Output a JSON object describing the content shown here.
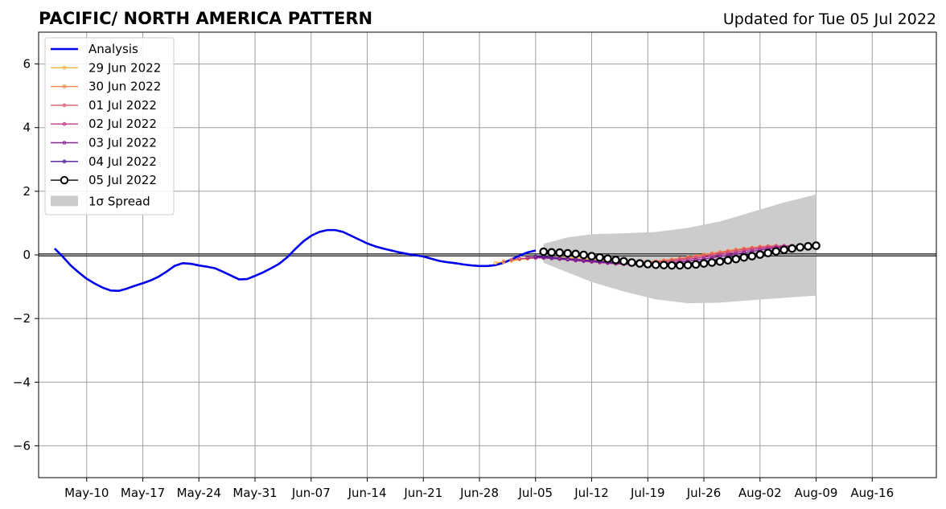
{
  "chart_data": {
    "type": "line",
    "title": "PACIFIC/ NORTH AMERICA PATTERN",
    "subtitle": "Updated for Tue 05 Jul 2022",
    "ylim": [
      -7,
      7
    ],
    "y_ticks": [
      -6,
      -4,
      -2,
      0,
      2,
      4,
      6
    ],
    "y_tick_labels": [
      "−6",
      "−4",
      "−2",
      "0",
      "2",
      "4",
      "6"
    ],
    "xlim": [
      "2022-05-04",
      "2022-08-24"
    ],
    "x_ticks": [
      "2022-05-10",
      "2022-05-17",
      "2022-05-24",
      "2022-05-31",
      "2022-06-07",
      "2022-06-14",
      "2022-06-21",
      "2022-06-28",
      "2022-07-05",
      "2022-07-12",
      "2022-07-19",
      "2022-07-26",
      "2022-08-02",
      "2022-08-09",
      "2022-08-16"
    ],
    "x_tick_labels": [
      "May-10",
      "May-17",
      "May-24",
      "May-31",
      "Jun-07",
      "Jun-14",
      "Jun-21",
      "Jun-28",
      "Jul-05",
      "Jul-12",
      "Jul-19",
      "Jul-26",
      "Aug-02",
      "Aug-09",
      "Aug-16"
    ],
    "grid": true,
    "legend_position": "top-left",
    "analysis": {
      "name": "Analysis",
      "color": "#0000ee",
      "x": [
        "2022-05-06",
        "2022-05-07",
        "2022-05-08",
        "2022-05-09",
        "2022-05-10",
        "2022-05-11",
        "2022-05-12",
        "2022-05-13",
        "2022-05-14",
        "2022-05-15",
        "2022-05-16",
        "2022-05-17",
        "2022-05-18",
        "2022-05-19",
        "2022-05-20",
        "2022-05-21",
        "2022-05-22",
        "2022-05-23",
        "2022-05-24",
        "2022-05-25",
        "2022-05-26",
        "2022-05-27",
        "2022-05-28",
        "2022-05-29",
        "2022-05-30",
        "2022-05-31",
        "2022-06-01",
        "2022-06-02",
        "2022-06-03",
        "2022-06-04",
        "2022-06-05",
        "2022-06-06",
        "2022-06-07",
        "2022-06-08",
        "2022-06-09",
        "2022-06-10",
        "2022-06-11",
        "2022-06-12",
        "2022-06-13",
        "2022-06-14",
        "2022-06-15",
        "2022-06-16",
        "2022-06-17",
        "2022-06-18",
        "2022-06-19",
        "2022-06-20",
        "2022-06-21",
        "2022-06-22",
        "2022-06-23",
        "2022-06-24",
        "2022-06-25",
        "2022-06-26",
        "2022-06-27",
        "2022-06-28",
        "2022-06-29",
        "2022-06-30",
        "2022-07-01",
        "2022-07-02",
        "2022-07-03",
        "2022-07-04",
        "2022-07-05"
      ],
      "y": [
        0.2,
        -0.05,
        -0.33,
        -0.55,
        -0.75,
        -0.9,
        -1.03,
        -1.12,
        -1.13,
        -1.06,
        -0.97,
        -0.89,
        -0.8,
        -0.68,
        -0.52,
        -0.34,
        -0.26,
        -0.28,
        -0.33,
        -0.37,
        -0.42,
        -0.53,
        -0.65,
        -0.77,
        -0.76,
        -0.66,
        -0.55,
        -0.42,
        -0.28,
        -0.08,
        0.18,
        0.42,
        0.6,
        0.72,
        0.78,
        0.78,
        0.72,
        0.6,
        0.48,
        0.36,
        0.27,
        0.2,
        0.14,
        0.08,
        0.03,
        -0.01,
        -0.05,
        -0.12,
        -0.19,
        -0.23,
        -0.26,
        -0.3,
        -0.33,
        -0.35,
        -0.35,
        -0.32,
        -0.25,
        -0.14,
        -0.02,
        0.08,
        0.14
      ]
    },
    "forecasts": [
      {
        "name": "29 Jun 2022",
        "color": "#fbb040",
        "start": "2022-06-30",
        "days": 35,
        "y": [
          -0.25,
          -0.22,
          -0.19,
          -0.15,
          -0.12,
          -0.1,
          -0.08,
          -0.08,
          -0.08,
          -0.09,
          -0.1,
          -0.12,
          -0.14,
          -0.16,
          -0.18,
          -0.2,
          -0.21,
          -0.22,
          -0.22,
          -0.21,
          -0.2,
          -0.18,
          -0.15,
          -0.12,
          -0.08,
          -0.04,
          0.01,
          0.05,
          0.09,
          0.13,
          0.17,
          0.2,
          0.23,
          0.25,
          0.26
        ]
      },
      {
        "name": "30 Jun 2022",
        "color": "#f4874a",
        "start": "2022-07-01",
        "days": 35,
        "y": [
          -0.2,
          -0.16,
          -0.12,
          -0.1,
          -0.08,
          -0.08,
          -0.09,
          -0.1,
          -0.12,
          -0.14,
          -0.17,
          -0.19,
          -0.21,
          -0.23,
          -0.24,
          -0.25,
          -0.25,
          -0.24,
          -0.22,
          -0.2,
          -0.17,
          -0.14,
          -0.11,
          -0.07,
          -0.03,
          0.01,
          0.05,
          0.09,
          0.13,
          0.17,
          0.2,
          0.23,
          0.26,
          0.28,
          0.29
        ]
      },
      {
        "name": "01 Jul 2022",
        "color": "#e0566e",
        "start": "2022-07-02",
        "days": 35,
        "y": [
          -0.15,
          -0.12,
          -0.1,
          -0.09,
          -0.09,
          -0.1,
          -0.12,
          -0.14,
          -0.16,
          -0.19,
          -0.21,
          -0.23,
          -0.25,
          -0.26,
          -0.27,
          -0.27,
          -0.26,
          -0.24,
          -0.22,
          -0.2,
          -0.17,
          -0.13,
          -0.1,
          -0.06,
          -0.02,
          0.02,
          0.06,
          0.1,
          0.14,
          0.18,
          0.21,
          0.24,
          0.27,
          0.28,
          0.29
        ]
      },
      {
        "name": "02 Jul 2022",
        "color": "#c0398a",
        "start": "2022-07-03",
        "days": 35,
        "y": [
          -0.12,
          -0.1,
          -0.09,
          -0.1,
          -0.11,
          -0.13,
          -0.15,
          -0.18,
          -0.2,
          -0.22,
          -0.24,
          -0.26,
          -0.28,
          -0.29,
          -0.3,
          -0.29,
          -0.28,
          -0.26,
          -0.24,
          -0.21,
          -0.18,
          -0.14,
          -0.11,
          -0.07,
          -0.03,
          0.01,
          0.05,
          0.09,
          0.13,
          0.17,
          0.2,
          0.23,
          0.26,
          0.28,
          0.29
        ]
      },
      {
        "name": "03 Jul 2022",
        "color": "#8a1f9a",
        "start": "2022-07-04",
        "days": 35,
        "y": [
          -0.08,
          -0.08,
          -0.09,
          -0.11,
          -0.13,
          -0.15,
          -0.17,
          -0.19,
          -0.21,
          -0.23,
          -0.25,
          -0.27,
          -0.29,
          -0.3,
          -0.31,
          -0.31,
          -0.3,
          -0.28,
          -0.26,
          -0.23,
          -0.2,
          -0.16,
          -0.13,
          -0.09,
          -0.05,
          -0.01,
          0.03,
          0.07,
          0.11,
          0.15,
          0.19,
          0.22,
          0.25,
          0.27,
          0.29
        ]
      },
      {
        "name": "04 Jul 2022",
        "color": "#50179a",
        "start": "2022-07-05",
        "days": 35,
        "y": [
          -0.05,
          -0.06,
          -0.08,
          -0.1,
          -0.12,
          -0.14,
          -0.16,
          -0.18,
          -0.2,
          -0.22,
          -0.24,
          -0.26,
          -0.28,
          -0.3,
          -0.31,
          -0.31,
          -0.31,
          -0.3,
          -0.28,
          -0.26,
          -0.23,
          -0.2,
          -0.17,
          -0.13,
          -0.09,
          -0.05,
          -0.01,
          0.03,
          0.07,
          0.11,
          0.15,
          0.19,
          0.22,
          0.25,
          0.28
        ]
      }
    ],
    "current_forecast": {
      "name": "05 Jul 2022",
      "color": "#000000",
      "start": "2022-07-06",
      "y": [
        0.1,
        0.08,
        0.07,
        0.05,
        0.03,
        0.0,
        -0.04,
        -0.08,
        -0.12,
        -0.16,
        -0.2,
        -0.24,
        -0.27,
        -0.29,
        -0.31,
        -0.32,
        -0.33,
        -0.33,
        -0.32,
        -0.3,
        -0.27,
        -0.24,
        -0.21,
        -0.17,
        -0.13,
        -0.08,
        -0.04,
        0.01,
        0.06,
        0.11,
        0.16,
        0.2,
        0.24,
        0.27,
        0.29
      ]
    },
    "spread": {
      "name": "1σ Spread",
      "color": "#cccccc",
      "x": [
        "2022-07-06",
        "2022-07-09",
        "2022-07-12",
        "2022-07-16",
        "2022-07-20",
        "2022-07-24",
        "2022-07-28",
        "2022-08-01",
        "2022-08-05",
        "2022-08-09"
      ],
      "upper": [
        0.35,
        0.55,
        0.65,
        0.68,
        0.72,
        0.85,
        1.05,
        1.35,
        1.65,
        1.9
      ],
      "lower": [
        -0.25,
        -0.55,
        -0.85,
        -1.15,
        -1.4,
        -1.52,
        -1.5,
        -1.42,
        -1.35,
        -1.28
      ]
    }
  }
}
